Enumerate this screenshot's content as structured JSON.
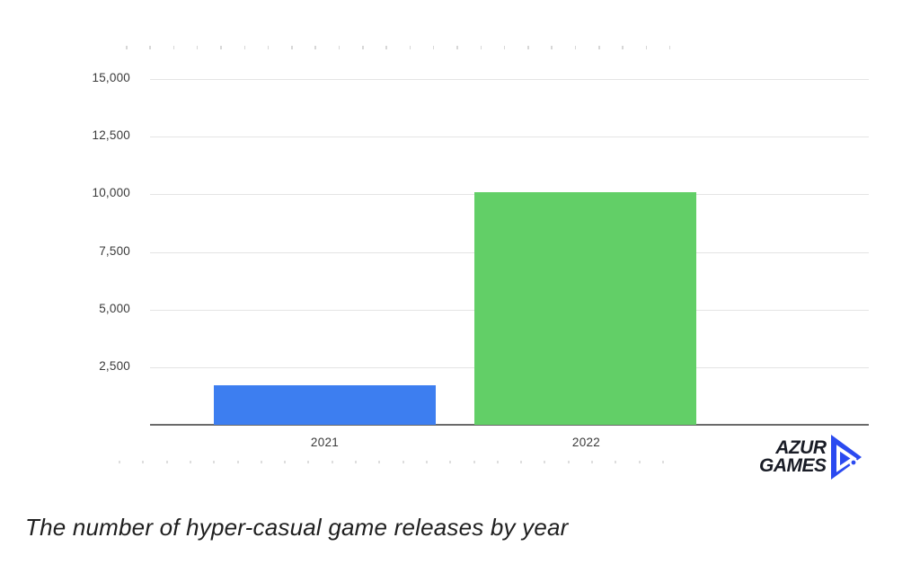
{
  "chart_data": {
    "type": "bar",
    "title": "The number of hyper-casual game releases by year",
    "categories": [
      "2021",
      "2022"
    ],
    "values": [
      1700,
      10100
    ],
    "bar_colors": [
      "#3d7ef0",
      "#62cf67"
    ],
    "xlabel": "",
    "ylabel": "",
    "ylim": [
      0,
      15000
    ],
    "ytick_interval": 2500,
    "ytick_labels": [
      "2,500",
      "5,000",
      "7,500",
      "10,000",
      "12,500",
      "15,000"
    ],
    "grid": true,
    "legend": false
  },
  "logo": {
    "line1": "AZUR",
    "line2": "GAMES",
    "icon": "play-triangle-icon",
    "text_color": "#191c26",
    "icon_color": "#2b4af0"
  },
  "colors": {
    "bar_2021": "#3d7ef0",
    "bar_2022": "#62cf67",
    "gridline": "#e4e4e4",
    "axis_line": "#6a6a6a",
    "tick_marks": "#d7d7d7",
    "axis_label_text": "#3a3a3a",
    "caption_text": "#1f1f1f"
  }
}
